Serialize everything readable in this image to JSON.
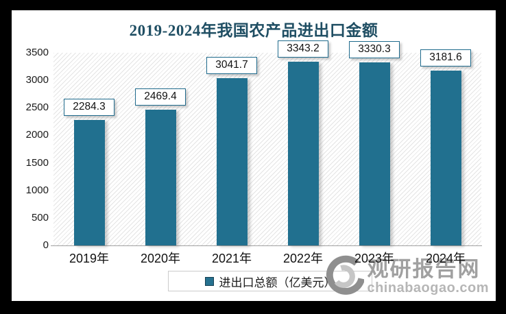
{
  "chart_data": {
    "type": "bar",
    "title": "2019-2024年我国农产品进出口金额",
    "categories": [
      "2019年",
      "2020年",
      "2021年",
      "2022年",
      "2023年",
      "2024年"
    ],
    "series": [
      {
        "name": "进出口总额（亿美元）",
        "values": [
          2284.3,
          2469.4,
          3041.7,
          3343.2,
          3330.3,
          3181.6
        ]
      }
    ],
    "xlabel": "",
    "ylabel": "",
    "ylim": [
      0,
      3500
    ],
    "yticks": [
      0,
      500,
      1000,
      1500,
      2000,
      2500,
      3000,
      3500
    ],
    "grid": false,
    "legend_position": "bottom",
    "value_labels_boxed": true,
    "bar_color": "#21708f",
    "plot_background": "diagonal-hatch"
  },
  "watermark": {
    "brand": "观研报告网",
    "domain": "chinabaogao.com",
    "logo": "swirl-logo-icon"
  },
  "colors": {
    "bar": "#21708f",
    "title": "#1f4e63",
    "value_box_border": "#1e6a8c",
    "watermark_gray": "#a0a0a0",
    "frame": "#000000"
  }
}
